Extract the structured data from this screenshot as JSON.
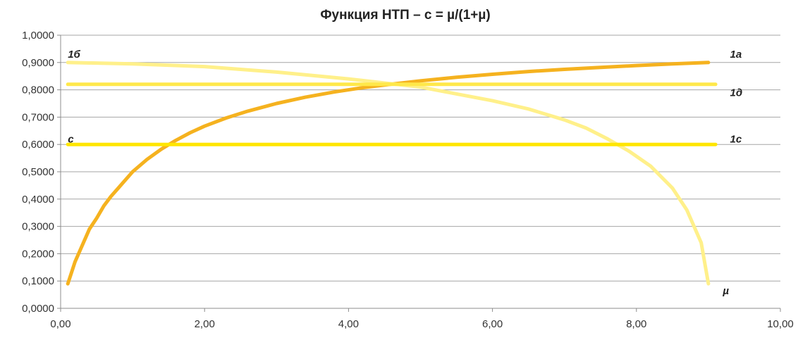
{
  "chart_data": {
    "type": "line",
    "title": "Функция НТП – с = µ/(1+µ)",
    "xlabel": "",
    "ylabel": "",
    "xlim": [
      0,
      10
    ],
    "ylim": [
      0,
      1
    ],
    "grid": true,
    "x_ticks": [
      "0,00",
      "2,00",
      "4,00",
      "6,00",
      "8,00",
      "10,00"
    ],
    "y_ticks": [
      "0,0000",
      "0,1000",
      "0,2000",
      "0,3000",
      "0,4000",
      "0,5000",
      "0,6000",
      "0,7000",
      "0,8000",
      "0,9000",
      "1,0000"
    ],
    "series": [
      {
        "color": "#f5b21f",
        "x": [
          0.1,
          0.15,
          0.2,
          0.3,
          0.4,
          0.5,
          0.6,
          0.7,
          0.8,
          0.9,
          1.0,
          1.2,
          1.4,
          1.6,
          1.8,
          2.0,
          2.3,
          2.6,
          3.0,
          3.4,
          3.8,
          4.2,
          4.6,
          5.0,
          5.5,
          6.0,
          6.5,
          7.0,
          7.5,
          8.0,
          8.5,
          9.0
        ],
        "y": [
          0.09,
          0.13,
          0.17,
          0.23,
          0.29,
          0.33,
          0.375,
          0.41,
          0.44,
          0.47,
          0.5,
          0.545,
          0.583,
          0.615,
          0.643,
          0.667,
          0.697,
          0.722,
          0.75,
          0.773,
          0.792,
          0.808,
          0.821,
          0.833,
          0.846,
          0.857,
          0.867,
          0.875,
          0.882,
          0.889,
          0.895,
          0.9
        ]
      },
      {
        "color": "#fff08a",
        "x": [
          0.1,
          1.0,
          2.0,
          3.0,
          4.0,
          5.0,
          5.5,
          6.0,
          6.5,
          7.0,
          7.3,
          7.6,
          7.9,
          8.2,
          8.5,
          8.7,
          8.9,
          9.0
        ],
        "y": [
          0.9,
          0.895,
          0.885,
          0.865,
          0.84,
          0.81,
          0.785,
          0.76,
          0.73,
          0.69,
          0.66,
          0.62,
          0.575,
          0.52,
          0.44,
          0.36,
          0.24,
          0.09
        ]
      },
      {
        "color": "#ffe84a",
        "x": [
          0.1,
          9.1
        ],
        "y": [
          0.82,
          0.82
        ]
      },
      {
        "color": "#ffe600",
        "x": [
          0.1,
          9.1
        ],
        "y": [
          0.6,
          0.6
        ]
      }
    ],
    "annotations": [
      {
        "text": "1б",
        "x": 0.1,
        "y": 0.93
      },
      {
        "text": "1а",
        "x": 9.3,
        "y": 0.93
      },
      {
        "text": "1д",
        "x": 9.3,
        "y": 0.79
      },
      {
        "text": "с",
        "x": 0.1,
        "y": 0.62
      },
      {
        "text": "1с",
        "x": 9.3,
        "y": 0.62
      },
      {
        "text": "µ",
        "x": 9.2,
        "y": 0.065
      }
    ]
  }
}
